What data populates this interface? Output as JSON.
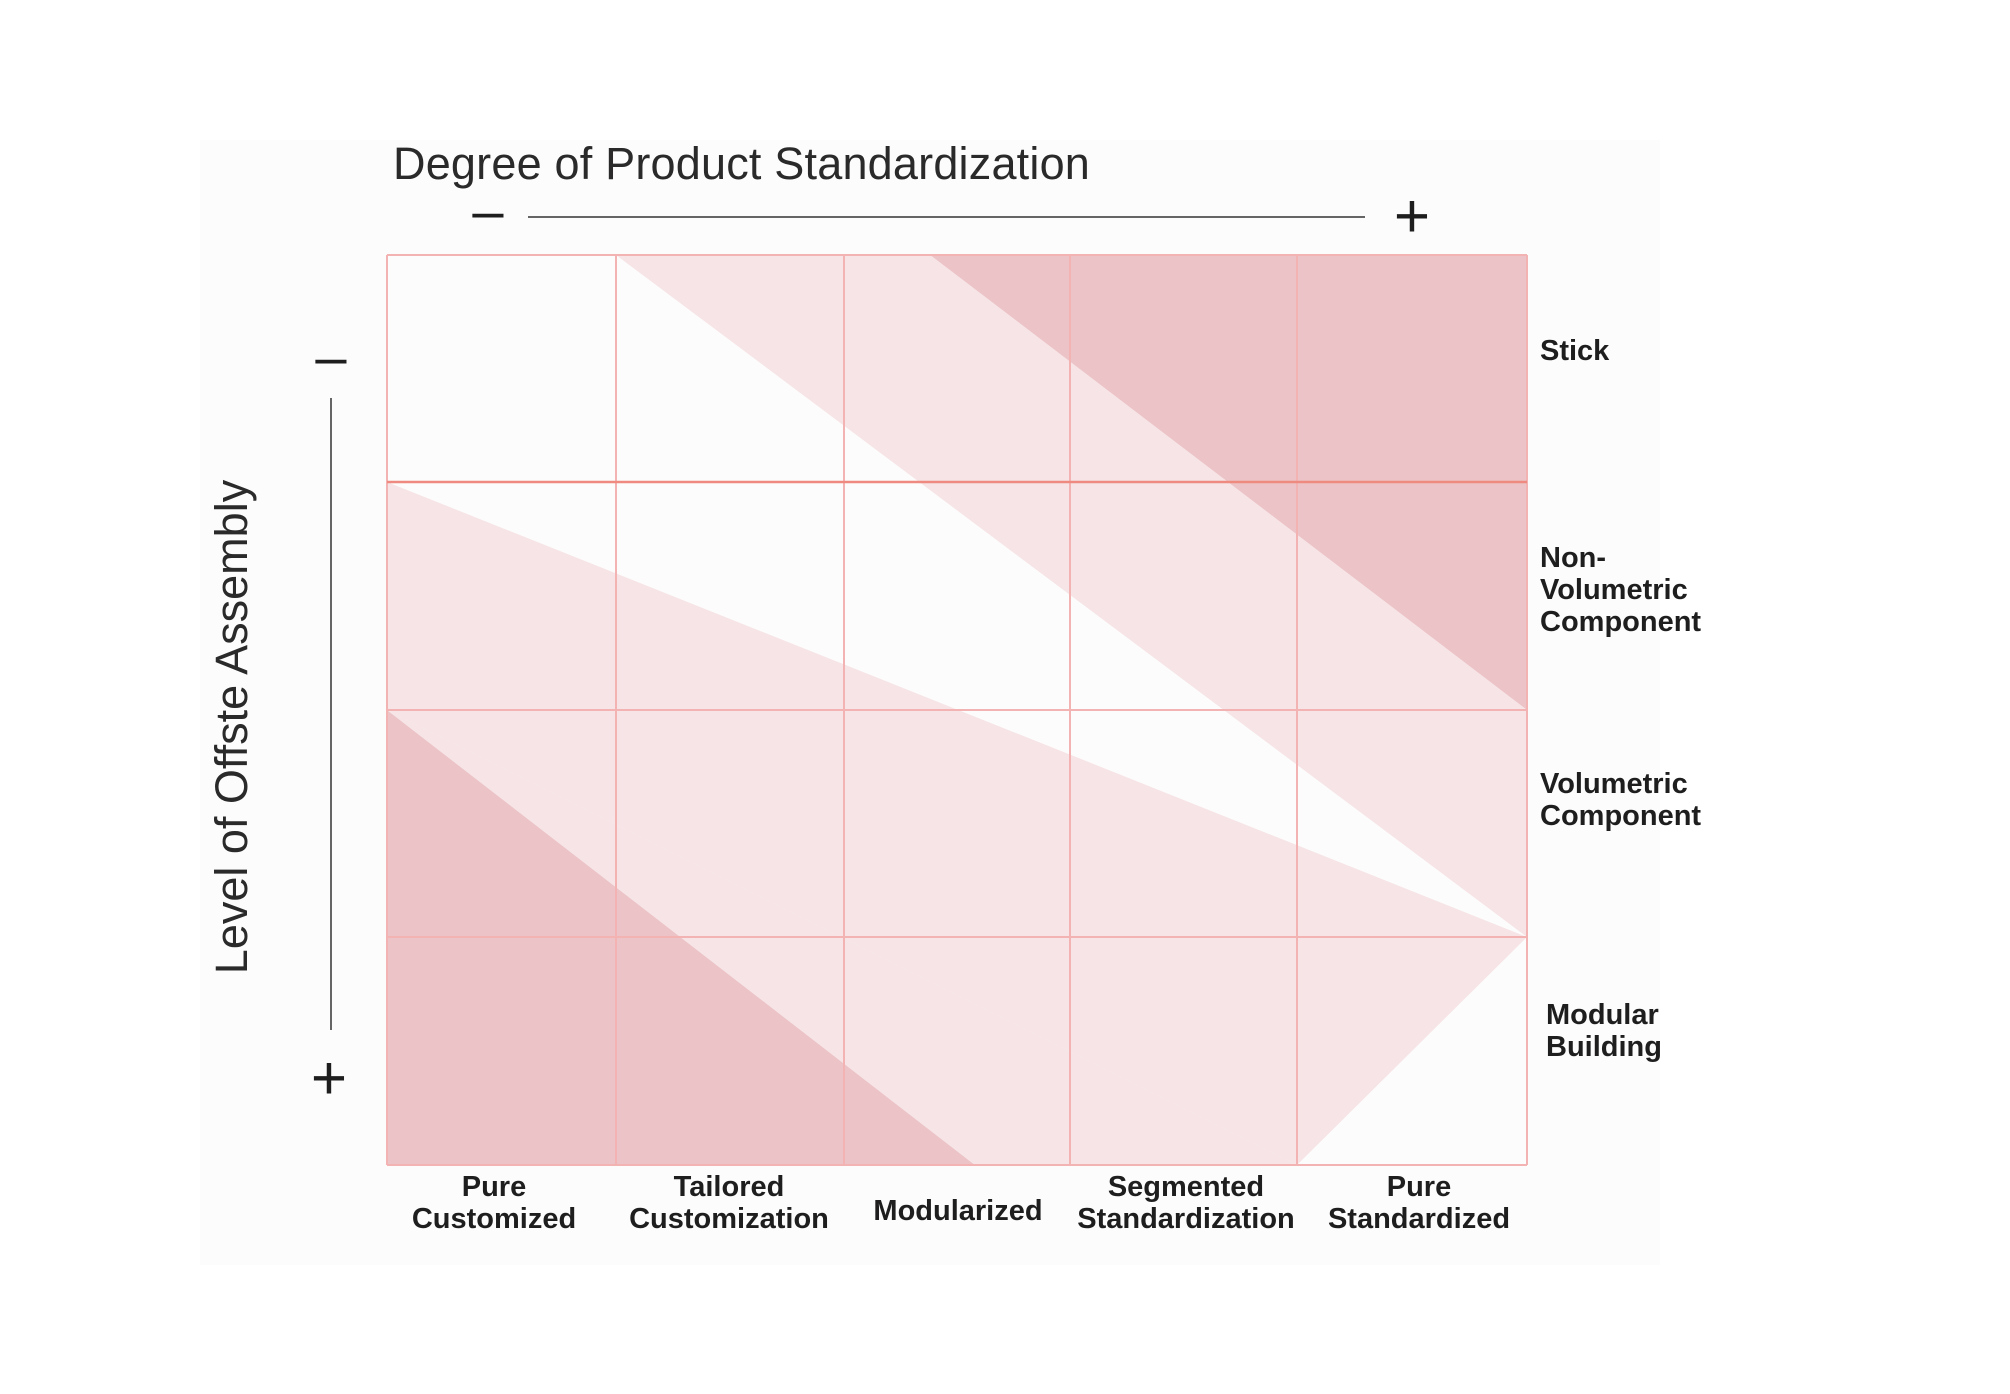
{
  "x_axis": {
    "title": "Degree of Product Standardization",
    "minus_label": "–",
    "plus_label": "+"
  },
  "y_axis": {
    "title": "Level of Offste Assembly",
    "minus_label": "–",
    "plus_label": "+"
  },
  "columns": [
    "Pure\nCustomized",
    "Tailored\nCustomization",
    "Modularized",
    "Segmented\nStandardization",
    "Pure\nStandardized"
  ],
  "rows": [
    "Stick",
    "Non-\nVolumetric\nComponent",
    "Volumetric\nComponent",
    "Modular\nBuilding"
  ],
  "colors": {
    "grid_line": "#f4b3b3",
    "emphasis_line": "#ee8a80",
    "band_dark": "#ecc4c7",
    "band_light": "#f6e4e6",
    "background": "#fdfcfc",
    "axis_line": "#333333"
  }
}
